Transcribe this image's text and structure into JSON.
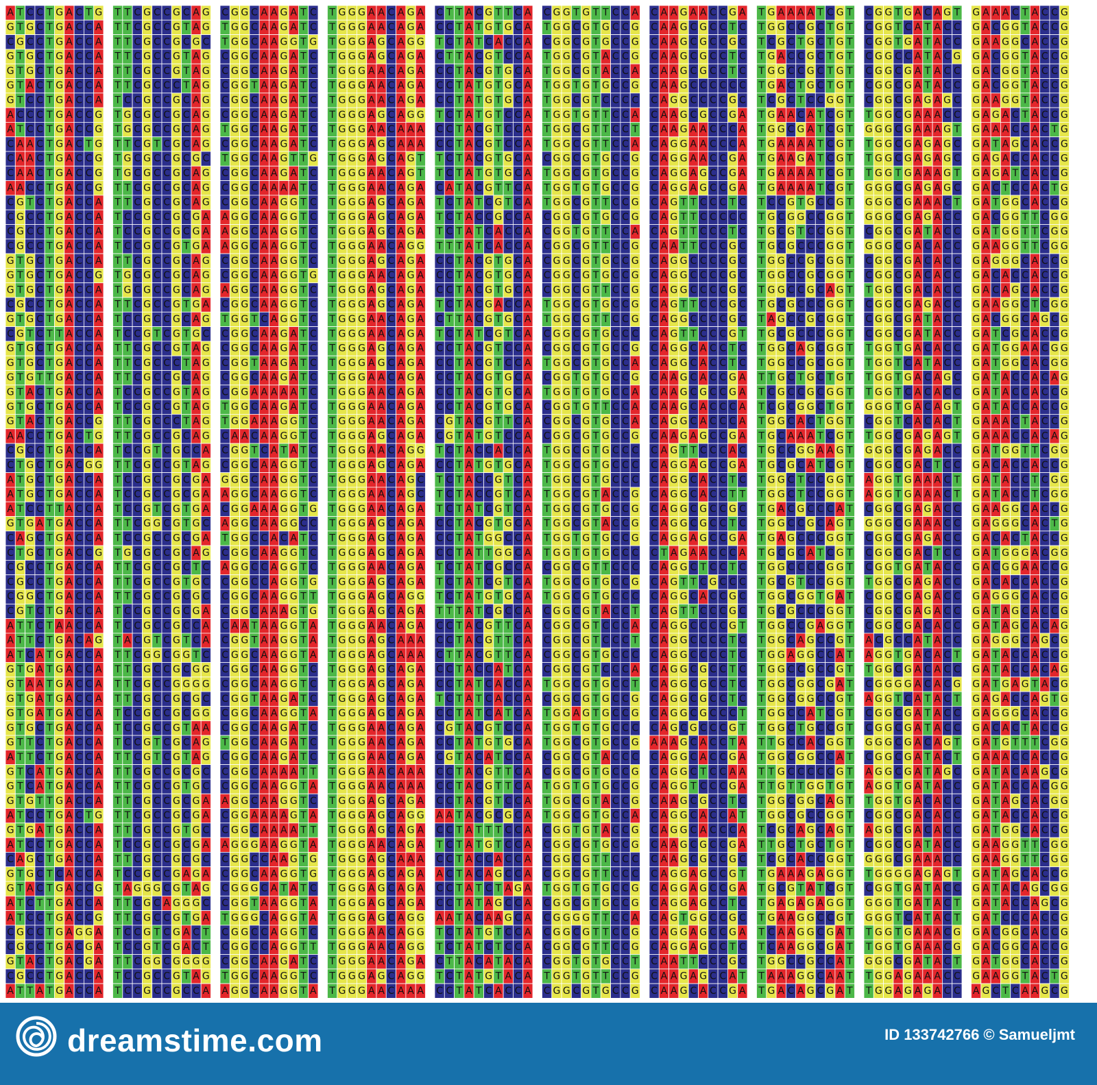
{
  "columns": [
    [
      "ATCCTGACTG",
      "GTGCTGACCA",
      "CGCCTGACCA",
      "GTGCTGACCA",
      "GTGCTGACCA",
      "GTACTGACCA",
      "GTCCTGACCA",
      "ACCCTGACCG",
      "ATCCTGACCG",
      "CAACTGACTG",
      "CAACTGACCG",
      "CAACTGACCG",
      "AACCTGACCG",
      "CGTCTGACCA",
      "CGCCTGACCA",
      "CGCCTGACCA",
      "CGCCTGACCA",
      "GTGCTGACCA",
      "GTGCTGACCG",
      "GTGCTGACCA",
      "CGCCTGACCA",
      "GTGCTGACCA",
      "CGTCTTACCA",
      "GTGCTGACCA",
      "GTGCTGACCA",
      "GTGTTGACCA",
      "GTACTGACCA",
      "GTGCTGACCA",
      "GTACTGACCG",
      "AACCTGACTG",
      "CGCCTGACCA",
      "CTGCTGACGG",
      "ATGCTGACCA",
      "ATGCTGACCA",
      "ATCCTTACCA",
      "GTGATGACCA",
      "CAGCTGACCA",
      "CTGCTGACCG",
      "CGCCTGACCA",
      "CGCCTGACCA",
      "CGGCTGACCA",
      "CGTCTGACCA",
      "ATTCTAACCA",
      "ATTCTGACAG",
      "ATCATGACCA",
      "GTGATGACCA",
      "GTAATGACCA",
      "GTGATGACCA",
      "GTGATGACCA",
      "GTGCTGACCA",
      "GTTCTGACCA",
      "ATTCTGACCA",
      "GTCATGACCA",
      "GTCATGACCA",
      "GTGTTGACCA",
      "ATCCTGACTG",
      "GTGATGACCA",
      "ATCCTGACCA",
      "CAGCTGACCA",
      "GTGCTCACCA",
      "GTACTGACCG",
      "ATCTTGACCA",
      "ATCCTGACCG",
      "CGCCTGAGGA",
      "CGCCTGACGA",
      "GTACTGACGA",
      "CGCCTGACCA",
      "ATTATGACCA"
    ],
    [
      "TTCGCCGCAG",
      "TTCGCCGTAG",
      "TTCGCCGCGC",
      "TTCGCCGTAG",
      "TTCGCCGTAG",
      "TTCGCCCTAG",
      "TCCGCCGCAG",
      "TGCGCCGCAG",
      "TGCGCCGCAG",
      "TTCGTCGCAG",
      "TGCGCCGCGC",
      "TGCGCCGCAG",
      "TTCGCCGCAG",
      "TTCGCCGCAG",
      "TCCGCCGCGA",
      "TCCGCCGCGA",
      "TCCGCCGTGA",
      "TTCGCCGCAG",
      "TGCGCCGCAG",
      "TGCGCCGCAG",
      "TTCGCCGTGA",
      "TCCGCCGCAG",
      "TCCGTCGTGC",
      "TTCGCCGTAG",
      "TTCGCCCTAG",
      "TTCGCCGCAG",
      "TCCGCCGTAG",
      "TCCGCCGTAG",
      "TTCGCCCTAG",
      "TTCGCCGCAG",
      "TCCGTCGCCA",
      "TTCGCCGTAG",
      "TCCGCCGCGA",
      "TCCGCCGCGA",
      "TCCGTCGTGA",
      "TTCGGCGTGC",
      "TCCGCCGCGA",
      "TGCGCCGCAG",
      "TTCGCCGCTC",
      "TTCGCCGTGC",
      "TTCGCCGCGC",
      "TCCGCCGCGA",
      "TCCGCCGCCA",
      "TACGTCGTCA",
      "TTCGGCGGTC",
      "TTCGCCGCGG",
      "TTCGCCGGGG",
      "TTCGCCGCGC",
      "TCCGCCGCGG",
      "TCCGCCGTAA",
      "TCCGTCGCAG",
      "TTCGTCGTAG",
      "TTCGCCGCGC",
      "TTCGCCGTGC",
      "TTCGCCGCGA",
      "TTCGCCGCGA",
      "TTCGCCGTGC",
      "TCCGCCGCGA",
      "TTCGCCGCGC",
      "TCCGCCGAGA",
      "TAGGGCGTAG",
      "TTCGCAGGGC",
      "TTCGCCGTGA",
      "TCCGTCGACT",
      "TCCGTCGACT",
      "TTCGGCGGGG",
      "TCCGCCGTAG",
      "TCCGCCGCCA"
    ],
    [
      "CGGCAAGATC",
      "TGGCAAGATC",
      "TGGCAAGGTG",
      "CGGCAAGATC",
      "CGGCAAGATC",
      "CGGTAAGATC",
      "CGGCAAGATC",
      "CGGCAAGATC",
      "TGGCAAGATC",
      "CGGCAAGATC",
      "TGGCAAGTTG",
      "CGGCAAGATC",
      "CGGCAAAATC",
      "CGGCAAGGTC",
      "AGGCAAGGTC",
      "AGGCAAGGTC",
      "AGGCAAGGTC",
      "CGGCAAGGTC",
      "CGGCAAGGTG",
      "AGGCAAGGTC",
      "CGGCAAGGTC",
      "TGGTCAGGTC",
      "CGGCAAGATC",
      "CGGCAAGATC",
      "CGGTAAGATC",
      "CGGCAAGATC",
      "CGGAAAAATC",
      "TGGCAAGATC",
      "TGGAAAGGTC",
      "CAACAAGGTC",
      "CGGTCATATC",
      "CGGCAAGGTC",
      "GGGCAAGGTC",
      "AGGCAAGGTC",
      "CGGAAAGGTG",
      "AGGCAAGGCC",
      "TGGCCACATC",
      "CGGCAAGGTC",
      "AGGCCAGGTC",
      "CGGCCAGGTG",
      "CGGCAAGGTT",
      "CGGCAAAGTG",
      "CAATAAGGTA",
      "CGGTAAGGTA",
      "CGGCAAGGTA",
      "CGGCAAGGTC",
      "CGGCAAGGTC",
      "CGGTAAGATC",
      "CGGCAAGGTA",
      "CGGCAAGATC",
      "TGGCAAGATC",
      "CGGCAAGATC",
      "CGGCAAAATT",
      "CGGCAAGGTA",
      "AGGCAAGGTC",
      "CGGAAAAGTA",
      "CGGCAAAATT",
      "AGGGAAGGTA",
      "CGGCCAAGTG",
      "CGGCAAGGTG",
      "CGGGCATATC",
      "CGGTAAGGTA",
      "TGGGCAGGTA",
      "CGGCCAGGTC",
      "CGGCCAGGTT",
      "CGGCAAGATC",
      "TGGCAAGGTC",
      "AGGCAAGGTA"
    ],
    [
      "TGGGAACAGA",
      "TGGGAACAGA",
      "TGGGAGCAGG",
      "TGGGAGCAGA",
      "TGGGAACAGA",
      "TGGGAACAGA",
      "TGGGAACAGA",
      "TGGGAGCAGG",
      "TGGGAACAAA",
      "TGGGAGCAAA",
      "TGGGAGCAGT",
      "TGGGAACAGT",
      "TGGGAACAGA",
      "TGGGAGCAGA",
      "TGGGAGCAGA",
      "TGGGAGCAGA",
      "TGGGAACAGG",
      "TGGGAGCAGA",
      "TGGGAACAGA",
      "TGGGAGCAGA",
      "TGGGAGCAGA",
      "TGGGAACAGA",
      "TGGGAACAGA",
      "TGGGAGCAGA",
      "TGGGAGCAGA",
      "TGGGAACAGA",
      "TGGGAACAGA",
      "TGGGAACAGA",
      "TGGGAACAGA",
      "TGGGAGCAGA",
      "TGGGAACAGG",
      "TGGGAGCAGA",
      "TGGGAACAGC",
      "TGGGAACAGC",
      "TGGGAACAGA",
      "TGGGAGCAGA",
      "TGGGAGCAGA",
      "TGGGAGCAGA",
      "TGGGAACAGA",
      "TGGGAGCAGA",
      "TGGGAGCAGG",
      "TGGGAGCAGA",
      "TGGGAACAGA",
      "TGGGAGCAAA",
      "TGGGAGCAAA",
      "TGGGAGCAGA",
      "TGGGAGCAGA",
      "TGGGAGCAGA",
      "TGGGAGCAGA",
      "TGGGAACAGA",
      "TGGGAACAGA",
      "TGGGAACAGA",
      "TGGGAACAAA",
      "TGGGAACAAA",
      "TGGGAGCAGA",
      "TGGGAGCAGG",
      "TGGGAGCAGA",
      "TGGGAACAGA",
      "TGGGAGCAAA",
      "TGGGAGCAGA",
      "TGGGAGCAGA",
      "TGGGAGCAGA",
      "TGGGAGCAGG",
      "TGGGAACAGG",
      "TGGGAACAGG",
      "TGGGAACAGA",
      "TGGGAGCAGG",
      "TGGGAACAAA"
    ],
    [
      "CTTACGTTCA",
      "CCTATGTGCA",
      "TCTATCACCA",
      "CTTACGTCCA",
      "CCTACGTGCA",
      "CCTATGTGCA",
      "CCTATGTGCA",
      "TCTATGTCCA",
      "CCTACGTCCA",
      "CCTACGTCCA",
      "TCTACGTGCA",
      "TCTATGTGCA",
      "CATACGTTCA",
      "TCTATCGTCA",
      "TCTACCGCCA",
      "TCTATCACCA",
      "TTTATCACCA",
      "CCTACGTGCA",
      "CCTACGTGCA",
      "CCTACGTGCA",
      "TCTACGACCA",
      "CTTACGTGCA",
      "TCTATCGTCA",
      "CCTACGTCCA",
      "CCTACGTCCA",
      "CCTACGTGCA",
      "CCTACGTGCA",
      "CCTACGTGCA",
      "CGTACGTTCA",
      "CGTATGTCCA",
      "TCTACCACCA",
      "CCTATGTGCA",
      "TCTACCGTCA",
      "TCTACCGTCA",
      "TCTATCGTCA",
      "CCTACGTGCA",
      "CCTATGGCCA",
      "CCTATTGGCA",
      "TCTATCGCCA",
      "TCTATCGTCA",
      "TCTATGTGCA",
      "TTTATCGCCA",
      "CCTACGTTCA",
      "CCTACGTTCA",
      "CTTACGTTCA",
      "CCTACCATCA",
      "CCTATCACCA",
      "TCTATCACCA",
      "CCTATCATCA",
      "CGTACGTCCA",
      "CCTATGTGCA",
      "CGTACATCCA",
      "CCTACGTTCA",
      "CCTACGTTCA",
      "CCTACGTCCA",
      "AATACGCGCA",
      "CCTATTTCCA",
      "TCTATGTCCA",
      "CCTACCACCA",
      "ACTACAGCCA",
      "CCTATCTAGA",
      "CCTATAGCCA",
      "AATACAAGCA",
      "TCTATGTCCA",
      "TCTATCTCCA",
      "CTTACATACA",
      "TCTATGTACA",
      "CCTATCACCA"
    ],
    [
      "CGGTGTTCCA",
      "TGGCGTGCCG",
      "CGGCGTGCCG",
      "TGGCGTACCG",
      "TGGCGTACCA",
      "TGGTGTGCCG",
      "TGGCGTCCCC",
      "TGGTGTTCCA",
      "TGGCGTTCCT",
      "TGGCGTTCCA",
      "CGGCGTGCCG",
      "TGGCGTGCCG",
      "TGGTGTGCCG",
      "TGGCGTTCCG",
      "CGGCGTGCCG",
      "CGGTGTTCCA",
      "CGGCGTTCCG",
      "CGGCGTGCCG",
      "CGGCGTGCCG",
      "CGGCGTTCCG",
      "TGGCGTGCCG",
      "TGGCGTTCCG",
      "CGGCGTGCCC",
      "CGGCGTGCCG",
      "TGGCGTGCCA",
      "CGGTGTGCCG",
      "TGGTGTGCCA",
      "CGGTGTTCCA",
      "CGGCGTGCCA",
      "CGGCGTGCCG",
      "TGGCGTGCCC",
      "TGGCGTGCCC",
      "TGGCGTGCCC",
      "TGGCGTACCG",
      "TGGCGTGCCG",
      "TGGCGTACCG",
      "TGGTGTGCCG",
      "TGGTGTGCCC",
      "CGGCGTTCCC",
      "TGGCGTGCCG",
      "TGGCGTGCCC",
      "CGGCGTACCT",
      "CGGCGTCCCA",
      "CGGCGTCCCT",
      "CGGCGTGCCC",
      "CGGCGTCCCA",
      "TGGCGTGCCT",
      "CGGCGTGCCG",
      "TGGAGTGCCG",
      "TGGTGTGCCC",
      "TGGCGTGCCG",
      "CGGCGTACCC",
      "CGGCGTGCCG",
      "TGGTGTGCCG",
      "TGGCGTACCG",
      "TGGCGTGCCA",
      "CGGTGTACCG",
      "CGGCGTGCCG",
      "CGGCGTTCCC",
      "CGGCGTTCCC",
      "TGGTGTGCCG",
      "CGGCGTGCCG",
      "CGGGGTTCCA",
      "CGGCGTTCCG",
      "CGGCGTTCCG",
      "CGGTGTGCCT",
      "TGGTGTTCCG",
      "CGGCGTGCCG"
    ],
    [
      "CAAGAACCGA",
      "CAAGCGCCTC",
      "CAAGCGCCGC",
      "CAAGCGCCTC",
      "CAAGCGCCTC",
      "CAAGCCCCCC",
      "CAGGCCCCGC",
      "CAAGCGCCGA",
      "CAAGAACCCA",
      "CAGGAACCCA",
      "CAGGAACCGA",
      "CAGGAGCCGA",
      "CAGGAGCCGA",
      "CAGTTCCCTC",
      "CAGTTCCCCC",
      "CAGTTCCCTC",
      "CAATTCCCGC",
      "CAGGCCCCGC",
      "CAGGCCCCGC",
      "CAGGCCCCGC",
      "CAGTTCCCGC",
      "CAGGCCCCGC",
      "CAGTTCCCGT",
      "CAGGCACCTC",
      "CAGGCACCTC",
      "CAAGCACCGA",
      "CAAGCGCCGA",
      "CAAGCACCCA",
      "CAGGCACCCA",
      "CAAGAGCCGA",
      "CAGTTCCCAC",
      "CAGGAGCCGA",
      "CAGGCACCTC",
      "CAGGCACCTT",
      "CAGGCGCCGC",
      "CAGGCGCCTC",
      "CAGGAGCCGA",
      "CTAGAACCCA",
      "CAGGCTCCTC",
      "CAGTTCGCCC",
      "CAGGCACCGC",
      "CAGTTCCCGC",
      "CAGGCCCCGT",
      "CAGGCCCCTC",
      "CAGGCCCCTC",
      "CAGGCGCCTC",
      "CAGGCGCCTC",
      "CAGGCGCCTC",
      "CAGGCGCCCT",
      "CAGCGCCCGT",
      "AAAGCACCTA",
      "CAGGCACCGA",
      "CAGGCTCCAA",
      "CAGGTCCCGA",
      "CAAGCGCCTC",
      "CAGGCACCAT",
      "CAGGCACCCA",
      "CAAGCGCCGA",
      "CAAGCGCCGC",
      "CAGGAGCCGT",
      "CAGGAGCCGA",
      "CAGGAGCCTC",
      "CAGTGGCCGC",
      "CAGGAGCCGA",
      "CAGGAGCCTC",
      "CAATTCCCGC",
      "CAAGAGCCAT",
      "CAAGCACCGA"
    ],
    [
      "TGAAAATCGT",
      "TGGCCGCTGT",
      "TCGCTGCTGT",
      "TGACCGCTGT",
      "TGGCCGCTGT",
      "TGACTGCTGT",
      "TCGCTCCGGT",
      "TGAACATCGT",
      "TGGCGATCGT",
      "TGAAAATCGT",
      "TGAAGATCGT",
      "TGAAAATCGT",
      "TGAAAATCGT",
      "TCCGTGCCGT",
      "TGCGGCCGGT",
      "TGCGTCCGGT",
      "TGCGCCCGGT",
      "TGGCCGCGGT",
      "TGGCCGCGGT",
      "TGGCCGCAGT",
      "TGCGCCCGGT",
      "TAGCCGCGGT",
      "TGCGCCCGGT",
      "TGGCAGCGGT",
      "TGGCCGCGGT",
      "TTGCTGCTGT",
      "TCGCCGCGGT",
      "TCGCGGCTGT",
      "TGGCACTGGT",
      "TGCAAATCGT",
      "TGCCGGAAGT",
      "TGCGCATCGT",
      "TGGCTCCGGT",
      "TGGCTCCGGT",
      "TGACGCCCAT",
      "TGGCCGCAGT",
      "TGAGCCCGGT",
      "TGCGCATCGT",
      "TGGCCCCGGT",
      "TGCGTCCGGT",
      "TGGCGGTGAT",
      "TGCGCCCGGT",
      "TGGCCGAGGT",
      "TGGCAGCCGT",
      "TGGAGGCCAT",
      "TGGCCGCCGT",
      "TGGCGGCGAT",
      "TGGCGGCCGT",
      "TGGCCATCGT",
      "TGGCTGCCGT",
      "TTGCCACGGT",
      "TGGCGGCCAT",
      "TTGCCCCCGT",
      "TTGTTGGTGT",
      "TGGCGGCAGT",
      "TGGCGCCGGT",
      "TCGCAGCAGT",
      "TTGCTGCTGT",
      "TCGCACCGGT",
      "TGAAAGAGGT",
      "TGCGTATCGT",
      "TGAGAGAGGT",
      "TGAAGGCCGT",
      "TCAAGGCGAT",
      "TCAAGGCGAT",
      "TGGCCGCCAT",
      "TAAAGGCAAT",
      "TGACAGCGAT"
    ],
    [
      "CGGTGACAGT",
      "CGGTCATACC",
      "CGGTGATACC",
      "CGGCCATACG",
      "CGGCGATACC",
      "CGGCGATACC",
      "CGGCGAGAGC",
      "TGGCGAAACC",
      "GGGCGAAAGT",
      "TGGCGAGAGC",
      "TGGCGAGAGC",
      "TGGTGAAAGT",
      "GGGCGAGAGC",
      "GGGCGAAACT",
      "GGGCGAGACC",
      "CGGCGATACC",
      "GGGCGACACC",
      "CGGCGACACC",
      "CGGCGACACC",
      "TGGCGACACC",
      "CGGCGAGACC",
      "CGGCGATACC",
      "CGGCGATACC",
      "TGGTGACACC",
      "TGGTCATACC",
      "TGGTGACAGC",
      "TGGTCACACC",
      "GGGTGACAGT",
      "CGGTCACACT",
      "TGGCGAGAGT",
      "GGGCGAGACC",
      "CGGCGACTCC",
      "AGGTGAAACT",
      "AGGTGAAACT",
      "CGGCGAGACC",
      "GGGCGAAACC",
      "CGGCGAGACC",
      "CGGCGACTCC",
      "CGGTGATACC",
      "TGGCGAGACC",
      "CGGCGAGACC",
      "CGGCGAGACC",
      "CGGCGACACC",
      "ACGCCATACC",
      "AGGTGACACT",
      "TGGCGACACC",
      "CGGGGACACG",
      "AGGTCATACT",
      "CGGCGATACC",
      "CGGCGATACC",
      "GGGCGACAGT",
      "CGGCGATACT",
      "AGGCGATAGC",
      "AGGTGATACC",
      "TGGTGACACC",
      "CGGCGACACC",
      "AGGCGACACC",
      "CGGCGATACC",
      "GGGCGAAACC",
      "TGGGGAGAGT",
      "CGGTGATACC",
      "GGGTGATACT",
      "GGGTCATACT",
      "TGGTGAAACG",
      "TGGTGAAACG",
      "GGGCGATACT",
      "TGGAGAAACC",
      "TGGAGAGACC"
    ],
    [
      "GAAACTACCG",
      "GACGGTACCG",
      "GAAGGCACCG",
      "GACGGTACCG",
      "GACGGTACCG",
      "GACGGTACCG",
      "GAAGGTACCG",
      "GAGACTACCG",
      "GAAACCACTG",
      "GATAGCACCG",
      "GAGACCACCG",
      "GAGATCACCG",
      "GACTCCACTG",
      "GATGGCACCG",
      "GACGGTTCGG",
      "GATGGTTCGG",
      "GAAGGTTCGG",
      "GAGGGCACCG",
      "GACACCACCG",
      "GACAGCACCG",
      "GAAGGCTCGG",
      "GACGGCAGCG",
      "GATCGCACCG",
      "GATGGAACGG",
      "GATGGCACGG",
      "GATACCACAG",
      "GATACCACCG",
      "GATACCACCG",
      "GAAACTACCG",
      "GAAACCACAG",
      "GATGGTTCGG",
      "GACACCACCG",
      "GATACCTCGG",
      "GATACCTCGG",
      "GAAGGCACCG",
      "GAGGGCACTG",
      "GACACTACCG",
      "GATGGGACGG",
      "GACGGAACCG",
      "GACACCACCG",
      "GAGGGCACCG",
      "GATAGCACCG",
      "GATAGCACAG",
      "GAGGGCAGCG",
      "GATACCACCG",
      "GATACCACAG",
      "GATGAGTACG",
      "GAGACCAGTG",
      "GAGGGCACCG",
      "GACACTACCG",
      "GATGTTTCGG",
      "GAAACCACCG",
      "GATACAAGCG",
      "GATACCACGG",
      "GATAGCACGG",
      "GATACCACCG",
      "GATGGCACCG",
      "GAAGGTTCGG",
      "GAAGGTTCGG",
      "GATAGCACCG",
      "GATACAGCGG",
      "GATACCAGCG",
      "GATCCCACCG",
      "GACGGCACCG",
      "GACGGCACCG",
      "GATGGCACCG",
      "GAAGGTACTG",
      "AGCTCAAGCG"
    ]
  ],
  "footer": {
    "brand": "dreamstime.com",
    "credit": "ID 133742766 © Samueljmt"
  }
}
